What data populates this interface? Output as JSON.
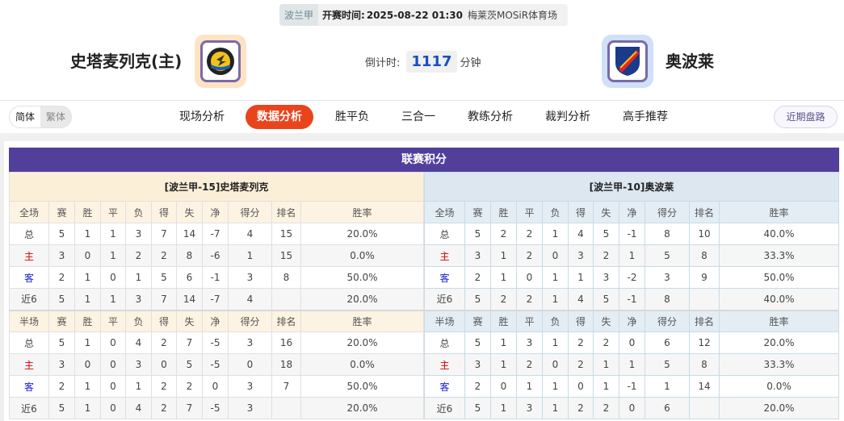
{
  "match": {
    "league": "波兰甲",
    "time_label": "开赛时间:",
    "time": "2025-08-22 01:30",
    "venue": "梅莱茨MOSiR体育场"
  },
  "home": {
    "name": "史塔麦列克(主)",
    "logo_color": "#fde3c4"
  },
  "away": {
    "name": "奥波莱",
    "logo_color": "#cfe0f8"
  },
  "countdown": {
    "label": "倒计时:",
    "value": "1117",
    "unit": "分钟"
  },
  "lang": {
    "simplified": "简体",
    "traditional": "繁体"
  },
  "nav": [
    "现场分析",
    "数据分析",
    "胜平负",
    "三合一",
    "教练分析",
    "裁判分析",
    "高手推荐"
  ],
  "nav_active": 1,
  "recent_button": "近期盘路",
  "section_title": "联赛积分",
  "columns": [
    "赛",
    "胜",
    "平",
    "负",
    "得",
    "失",
    "净",
    "得分",
    "排名",
    "胜率"
  ],
  "row_labels": [
    "总",
    "主",
    "客",
    "近6"
  ],
  "tables": [
    {
      "caption": "[波兰甲-15]史塔麦列克",
      "full": {
        "label": "全场",
        "rows": [
          [
            "5",
            "1",
            "1",
            "3",
            "7",
            "14",
            "-7",
            "4",
            "15",
            "20.0%"
          ],
          [
            "3",
            "0",
            "1",
            "2",
            "2",
            "8",
            "-6",
            "1",
            "15",
            "0.0%"
          ],
          [
            "2",
            "1",
            "0",
            "1",
            "5",
            "6",
            "-1",
            "3",
            "8",
            "50.0%"
          ],
          [
            "5",
            "1",
            "1",
            "3",
            "7",
            "14",
            "-7",
            "4",
            "",
            "20.0%"
          ]
        ]
      },
      "half": {
        "label": "半场",
        "rows": [
          [
            "5",
            "1",
            "0",
            "4",
            "2",
            "7",
            "-5",
            "3",
            "16",
            "20.0%"
          ],
          [
            "3",
            "0",
            "0",
            "3",
            "0",
            "5",
            "-5",
            "0",
            "18",
            "0.0%"
          ],
          [
            "2",
            "1",
            "0",
            "1",
            "2",
            "2",
            "0",
            "3",
            "7",
            "50.0%"
          ],
          [
            "5",
            "1",
            "0",
            "4",
            "2",
            "7",
            "-5",
            "3",
            "",
            "20.0%"
          ]
        ]
      }
    },
    {
      "caption": "[波兰甲-10]奥波莱",
      "full": {
        "label": "全场",
        "rows": [
          [
            "5",
            "2",
            "2",
            "1",
            "4",
            "5",
            "-1",
            "8",
            "10",
            "40.0%"
          ],
          [
            "3",
            "1",
            "2",
            "0",
            "3",
            "2",
            "1",
            "5",
            "8",
            "33.3%"
          ],
          [
            "2",
            "1",
            "0",
            "1",
            "1",
            "3",
            "-2",
            "3",
            "9",
            "50.0%"
          ],
          [
            "5",
            "2",
            "2",
            "1",
            "4",
            "5",
            "-1",
            "8",
            "",
            "40.0%"
          ]
        ]
      },
      "half": {
        "label": "半场",
        "rows": [
          [
            "5",
            "1",
            "3",
            "1",
            "2",
            "2",
            "0",
            "6",
            "12",
            "20.0%"
          ],
          [
            "3",
            "1",
            "2",
            "0",
            "2",
            "1",
            "1",
            "5",
            "8",
            "33.3%"
          ],
          [
            "2",
            "0",
            "1",
            "1",
            "0",
            "1",
            "-1",
            "1",
            "14",
            "0.0%"
          ],
          [
            "5",
            "1",
            "3",
            "1",
            "2",
            "2",
            "0",
            "6",
            "",
            "20.0%"
          ]
        ]
      }
    }
  ]
}
